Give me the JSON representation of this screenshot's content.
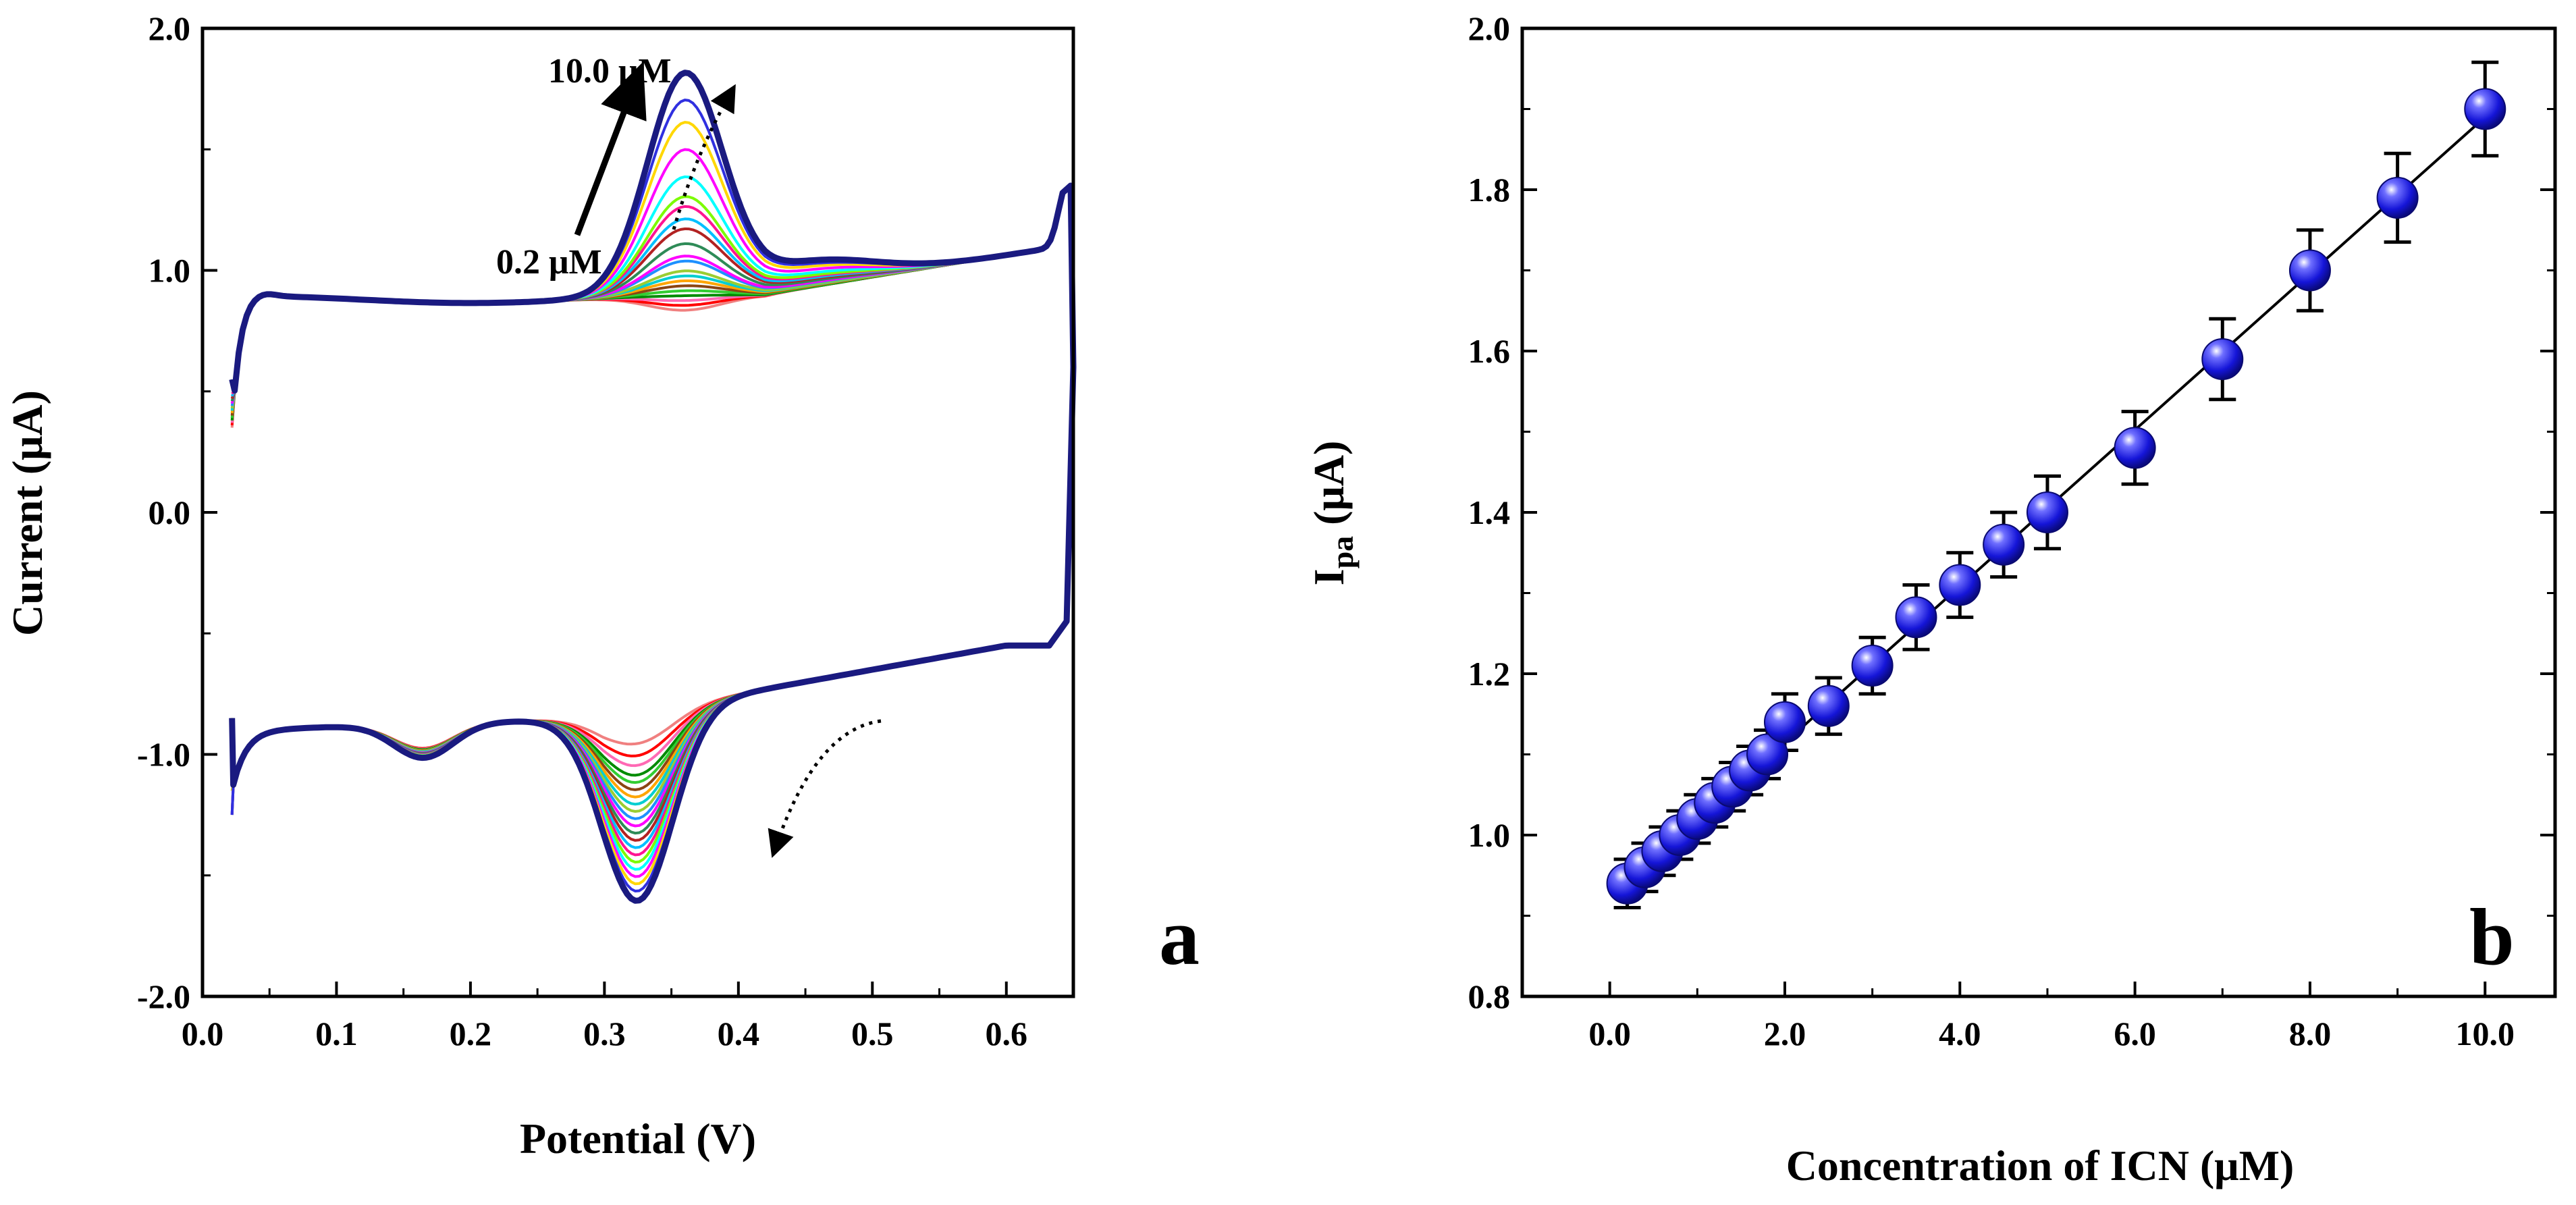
{
  "chart_data": [
    {
      "panel_label": "a",
      "type": "line",
      "title": "",
      "xlabel": "Potential (V)",
      "ylabel": "Current (μA)",
      "xlim": [
        0.0,
        0.65
      ],
      "ylim": [
        -2.0,
        2.0
      ],
      "xticks": [
        0.0,
        0.1,
        0.2,
        0.3,
        0.4,
        0.5,
        0.6
      ],
      "xtick_labels": [
        "0.0",
        "0.1",
        "0.2",
        "0.3",
        "0.4",
        "0.5",
        "0.6"
      ],
      "yticks": [
        -2.0,
        -1.0,
        0.0,
        1.0,
        2.0
      ],
      "ytick_labels": [
        "-2.0",
        "-1.0",
        "0.0",
        "1.0",
        "2.0"
      ],
      "annotations": [
        "10.0 μM",
        "0.2 μM"
      ],
      "concentrations_uM": [
        0.2,
        0.4,
        0.6,
        0.8,
        1.0,
        1.2,
        1.4,
        1.6,
        1.8,
        2.0,
        2.5,
        3.0,
        3.5,
        4.0,
        4.5,
        5.0,
        6.0,
        7.0,
        8.0,
        9.0,
        10.0
      ],
      "anodic_peak_potential_V": 0.36,
      "anodic_peak_current_uA": [
        0.94,
        0.96,
        0.98,
        1.0,
        1.02,
        1.04,
        1.06,
        1.08,
        1.1,
        1.14,
        1.16,
        1.21,
        1.27,
        1.31,
        1.36,
        1.4,
        1.48,
        1.59,
        1.7,
        1.79,
        1.9
      ],
      "cathodic_peak_potential_V": 0.325,
      "cathodic_peak_current_uA": [
        -0.95,
        -1.0,
        -1.04,
        -1.08,
        -1.11,
        -1.14,
        -1.17,
        -1.2,
        -1.23,
        -1.26,
        -1.29,
        -1.32,
        -1.35,
        -1.38,
        -1.41,
        -1.44,
        -1.47,
        -1.5,
        -1.53,
        -1.56,
        -1.6
      ],
      "colors": [
        "#f08080",
        "#ff0000",
        "#ff69b4",
        "#008b00",
        "#32cd32",
        "#8b4513",
        "#ffa500",
        "#00ced1",
        "#9acd32",
        "#1e90ff",
        "#ff00ff",
        "#2e8b57",
        "#b22222",
        "#00bfff",
        "#ff1493",
        "#7cfc00",
        "#00ffff",
        "#ff00ff",
        "#ffd700",
        "#3030e0",
        "#1a1a80"
      ]
    },
    {
      "panel_label": "b",
      "type": "scatter",
      "title": "",
      "xlabel": "Concentration of ICN (μM)",
      "ylabel_main": "I",
      "ylabel_sub": "pa",
      "ylabel_unit": " (μA)",
      "xlim": [
        -1.0,
        10.8
      ],
      "ylim": [
        0.8,
        2.0
      ],
      "xticks": [
        0.0,
        2.0,
        4.0,
        6.0,
        8.0,
        10.0
      ],
      "xtick_labels": [
        "0.0",
        "2.0",
        "4.0",
        "6.0",
        "8.0",
        "10.0"
      ],
      "yticks": [
        0.8,
        1.0,
        1.2,
        1.4,
        1.6,
        1.8,
        2.0
      ],
      "ytick_labels": [
        "0.8",
        "1.0",
        "1.2",
        "1.4",
        "1.6",
        "1.8",
        "2.0"
      ],
      "x": [
        0.2,
        0.4,
        0.6,
        0.8,
        1.0,
        1.2,
        1.4,
        1.6,
        1.8,
        2.0,
        2.5,
        3.0,
        3.5,
        4.0,
        4.5,
        5.0,
        6.0,
        7.0,
        8.0,
        9.0,
        10.0
      ],
      "y": [
        0.94,
        0.96,
        0.98,
        1.0,
        1.02,
        1.04,
        1.06,
        1.08,
        1.1,
        1.14,
        1.16,
        1.21,
        1.27,
        1.31,
        1.36,
        1.4,
        1.48,
        1.59,
        1.7,
        1.79,
        1.9
      ],
      "error": [
        0.03,
        0.03,
        0.03,
        0.03,
        0.03,
        0.03,
        0.03,
        0.03,
        0.03,
        0.035,
        0.035,
        0.035,
        0.04,
        0.04,
        0.04,
        0.045,
        0.045,
        0.05,
        0.05,
        0.055,
        0.058
      ],
      "fit": {
        "x": [
          0.2,
          10.0
        ],
        "y": [
          0.94,
          1.89
        ]
      },
      "marker_color": "#2020e0"
    }
  ]
}
